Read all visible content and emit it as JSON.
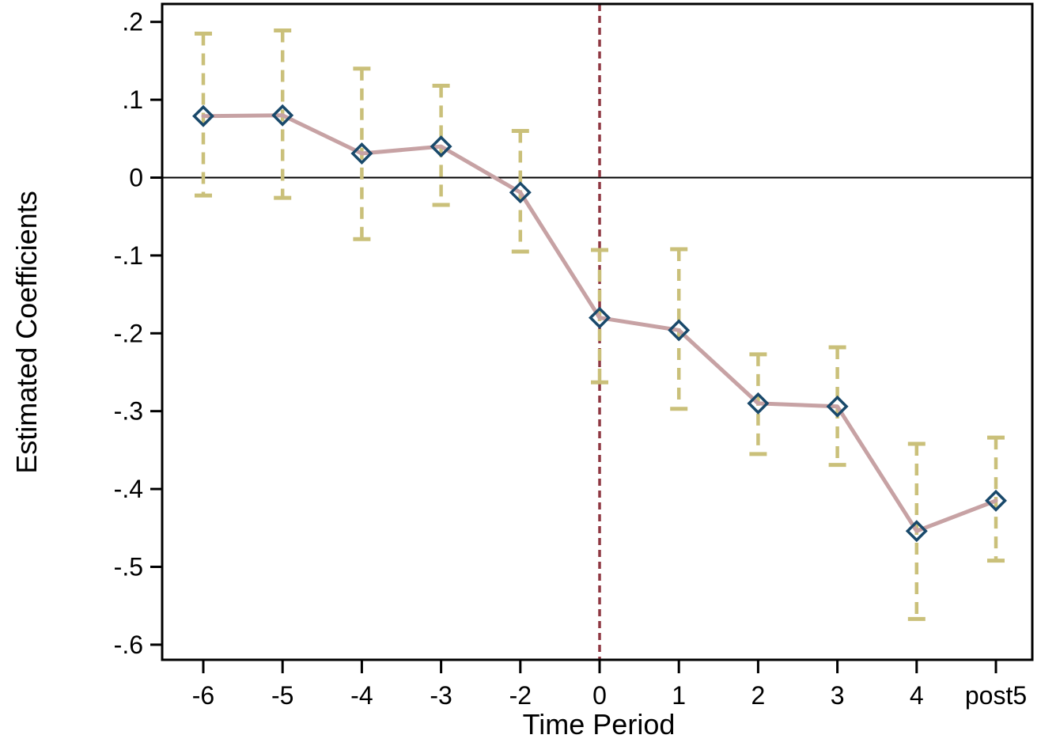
{
  "chart_data": {
    "type": "line",
    "title": "",
    "xlabel": "Time Period",
    "ylabel": "Estimated Coefficients",
    "categories": [
      "-6",
      "-5",
      "-4",
      "-3",
      "-2",
      "0",
      "1",
      "2",
      "3",
      "4",
      "post5"
    ],
    "series": [
      {
        "name": "Estimated Coefficients",
        "values": [
          0.079,
          0.08,
          0.031,
          0.04,
          -0.019,
          -0.18,
          -0.196,
          -0.29,
          -0.294,
          -0.454,
          -0.415
        ]
      },
      {
        "name": "CI lower",
        "values": [
          -0.023,
          -0.026,
          -0.079,
          -0.035,
          -0.095,
          -0.263,
          -0.297,
          -0.355,
          -0.369,
          -0.567,
          -0.492
        ]
      },
      {
        "name": "CI upper",
        "values": [
          0.185,
          0.189,
          0.14,
          0.118,
          0.06,
          -0.093,
          -0.092,
          -0.227,
          -0.218,
          -0.342,
          -0.334
        ]
      }
    ],
    "y_tick_labels": [
      ".2",
      ".1",
      "0",
      "-.1",
      "-.2",
      "-.3",
      "-.4",
      "-.5",
      "-.6"
    ],
    "y_tick_values": [
      0.2,
      0.1,
      0,
      -0.1,
      -0.2,
      -0.3,
      -0.4,
      -0.5,
      -0.6
    ],
    "ylim": [
      -0.62,
      0.223
    ],
    "reference_hline_at": 0,
    "reference_vline_at": "0",
    "grid": false,
    "legend": "none",
    "marker": "hollow-diamond",
    "colors": {
      "coefficient_line": "#c7a2a4",
      "marker_outline": "#19496b",
      "error_bar": "#cac07a",
      "reference_vline": "#8e3741",
      "axis": "#000000",
      "background": "#ffffff"
    }
  }
}
